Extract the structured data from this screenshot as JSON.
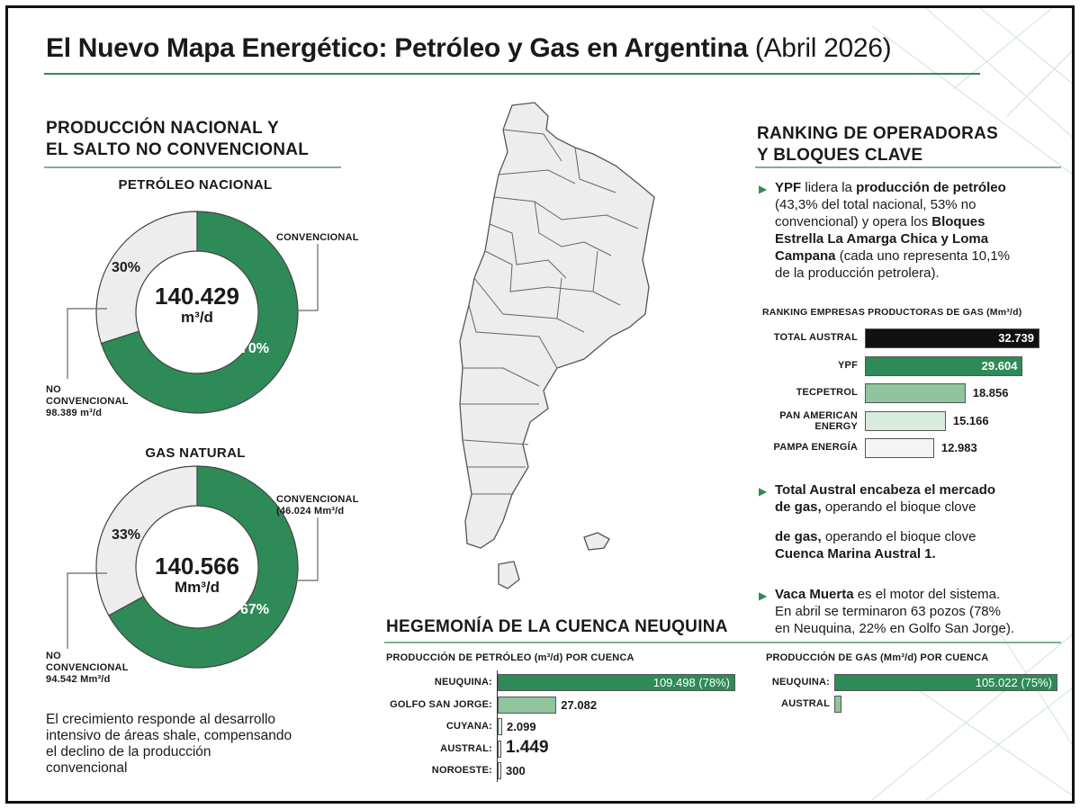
{
  "header": {
    "title": "El Nuevo Mapa Energético: Petróleo y Gas en Argentina",
    "subtitle": "(Abril 2026)"
  },
  "left": {
    "section_title_1": "PRODUCCIÓN NACIONAL Y",
    "section_title_2": "EL SALTO NO CONVENCIONAL",
    "oil": {
      "heading": "PETRÓLEO NACIONAL",
      "total": "140.429",
      "unit": "m³/d",
      "conv_label": "CONVENCIONAL",
      "conv_pct": "30%",
      "nonconv_pct": "70%",
      "nonconv_label_1": "NO",
      "nonconv_label_2": "CONVENCIONAL",
      "nonconv_value": "98.389 m³/d"
    },
    "gas": {
      "heading": "GAS NATURAL",
      "total": "140.566",
      "unit": "Mm³/d",
      "conv_label": "CONVENCIONAL",
      "conv_value": "(46.024 Mm³/d",
      "conv_pct": "33%",
      "nonconv_pct": "67%",
      "nonconv_label_1": "NO",
      "nonconv_label_2": "CONVENCIONAL",
      "nonconv_value": "94.542 Mm³/d"
    },
    "note_1": "El crecimiento responde al desarrollo",
    "note_2": "intensivo de áreas shale, compensando",
    "note_3": "el declino de la producción",
    "note_4": "convencional"
  },
  "right": {
    "section_title_1": "RANKING DE OPERADORAS",
    "section_title_2": "Y BLOQUES CLAVE",
    "bullet1": {
      "b1": "YPF",
      "t1": " lidera la ",
      "b2": "producción de petróleo",
      "l2": "(43,3% del total nacional, 53% no",
      "l3a": "convencional) y opera los ",
      "l3b": "Bloques",
      "l4": "Estrella La Amarga Chica y Loma",
      "l5a": "Campana",
      "l5b": " (cada uno representa 10,1%",
      "l6": "de la producción petrolera)."
    },
    "gas_rank_heading": "RANKING EMPRESAS PRODUCTORAS DE GAS (Mm³/d)",
    "bullet2": {
      "l1": "Total Austral encabeza el mercado",
      "l2a": "de gas,",
      "l2b": " operando el bioque clove",
      "l3a": "de gas,",
      "l3b": " operando el bioque clove",
      "l4": "Cuenca Marina Austral 1."
    },
    "bullet3": {
      "l1a": "Vaca Muerta",
      "l1b": " es el motor del sistema.",
      "l2": "En abril se terminaron 63 pozos (78%",
      "l3": "en Neuquina, 22% en Golfo San Jorge)."
    }
  },
  "bottom": {
    "section_title": "HEGEMONÍA DE LA CUENCA NEUQUINA",
    "oil_heading": "PRODUCCIÓN DE PETRÓLEO (m³/d) POR CUENCA",
    "gas_heading": "PRODUCCIÓN DE GAS (Mm³/d) POR CUENCA"
  },
  "colors": {
    "green": "#2e8b57",
    "light_green": "#8fc49c",
    "pale_green": "#d9ecdc",
    "pale_grey": "#ededed",
    "black": "#111111"
  },
  "chart_data": [
    {
      "type": "pie",
      "title": "PETRÓLEO NACIONAL",
      "categories": [
        "CONVENCIONAL",
        "NO CONVENCIONAL"
      ],
      "values": [
        30,
        70
      ],
      "total": 140429,
      "unit": "m³/d"
    },
    {
      "type": "pie",
      "title": "GAS NATURAL",
      "categories": [
        "CONVENCIONAL",
        "NO CONVENCIONAL"
      ],
      "values": [
        33,
        67
      ],
      "total": 140566,
      "unit": "Mm³/d"
    },
    {
      "type": "bar",
      "title": "RANKING EMPRESAS PRODUCTORAS DE GAS (Mm³/d)",
      "categories": [
        "TOTAL AUSTRAL",
        "YPF",
        "TECPETROL",
        "PAN AMERICAN ENERGY",
        "PAMPA ENERGÍA"
      ],
      "values": [
        32739,
        29604,
        18856,
        15166,
        12983
      ],
      "labels": [
        "32.739",
        "29.604",
        "18.856",
        "15.166",
        "12.983"
      ]
    },
    {
      "type": "bar",
      "title": "PRODUCCIÓN DE PETRÓLEO (m³/d) POR CUENCA",
      "categories": [
        "NEUQUINA:",
        "GOLFO SAN JORGE:",
        "CUYANA:",
        "AUSTRAL:",
        "NOROESTE:"
      ],
      "values": [
        109498,
        27082,
        2099,
        1449,
        300
      ],
      "labels": [
        "109.498 (78%)",
        "27.082",
        "2.099",
        "1.449",
        "300"
      ]
    },
    {
      "type": "bar",
      "title": "PRODUCCIÓN DE GAS (Mm²/d) POR CUENCA",
      "categories": [
        "NEUQUINA:",
        "AUSTRAL"
      ],
      "values": [
        105022,
        3500
      ],
      "labels": [
        "105.022 (75%)",
        ""
      ]
    }
  ]
}
